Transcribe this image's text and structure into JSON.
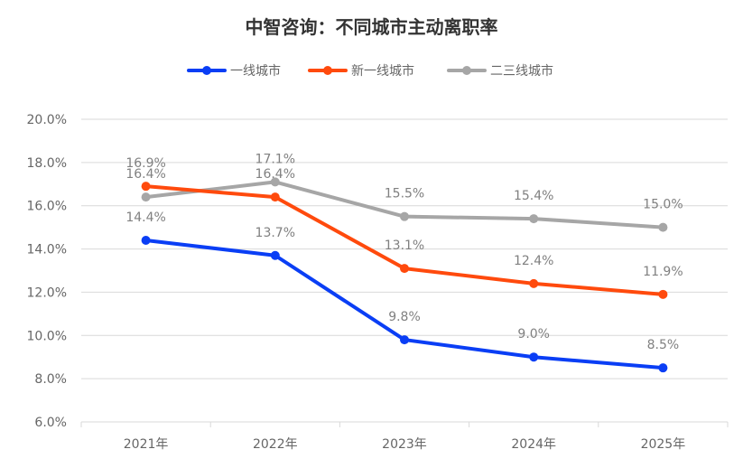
{
  "chart_data": {
    "type": "line",
    "title": "中智咨询：不同城市主动离职率",
    "categories": [
      "2021年",
      "2022年",
      "2023年",
      "2024年",
      "2025年"
    ],
    "series": [
      {
        "name": "一线城市",
        "color": "#0a3ef5",
        "values": [
          14.4,
          13.7,
          9.8,
          9.0,
          8.5
        ],
        "labels": [
          "14.4%",
          "13.7%",
          "9.8%",
          "9.0%",
          "8.5%"
        ]
      },
      {
        "name": "新一线城市",
        "color": "#ff4a0d",
        "values": [
          16.9,
          16.4,
          13.1,
          12.4,
          11.9
        ],
        "labels": [
          "16.9%",
          "16.4%",
          "13.1%",
          "12.4%",
          "11.9%"
        ]
      },
      {
        "name": "二三线城市",
        "color": "#a6a6a6",
        "values": [
          16.4,
          17.1,
          15.5,
          15.4,
          15.0
        ],
        "labels": [
          "16.4%",
          "17.1%",
          "15.5%",
          "15.4%",
          "15.0%"
        ]
      }
    ],
    "ylim": [
      6.0,
      20.0
    ],
    "yticks": [
      "6.0%",
      "8.0%",
      "10.0%",
      "12.0%",
      "14.0%",
      "16.0%",
      "18.0%",
      "20.0%"
    ],
    "grid": true,
    "legend_position": "top"
  }
}
